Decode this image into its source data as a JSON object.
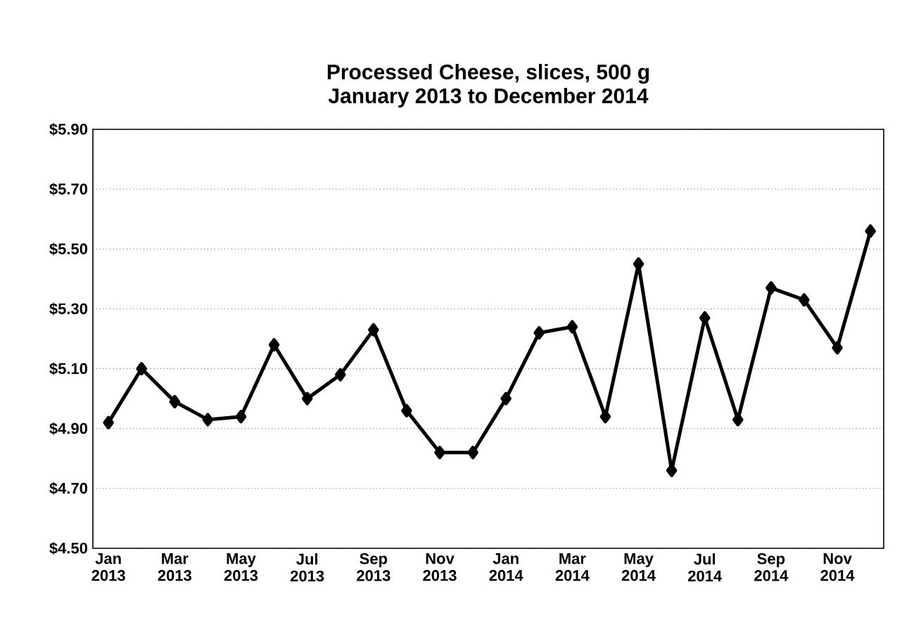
{
  "chart_data": {
    "type": "line",
    "title": "Processed Cheese, slices, 500 g",
    "subtitle": "January 2013 to December 2014",
    "categories": [
      "Jan 2013",
      null,
      "Mar 2013",
      null,
      "May 2013",
      null,
      "Jul 2013",
      null,
      "Sep 2013",
      null,
      "Nov 2013",
      null,
      "Jan 2014",
      null,
      "Mar 2014",
      null,
      "May 2014",
      null,
      "Jul 2014",
      null,
      "Sep 2014",
      null,
      "Nov 2014",
      null
    ],
    "values": [
      4.92,
      5.1,
      4.99,
      4.93,
      4.94,
      5.18,
      5.0,
      5.08,
      5.23,
      4.96,
      4.82,
      4.82,
      5.0,
      5.22,
      5.24,
      4.94,
      5.45,
      4.76,
      5.27,
      4.93,
      5.37,
      5.33,
      5.17,
      5.56
    ],
    "color": "#000000",
    "ylim": [
      4.5,
      5.9
    ],
    "yticks": [
      {
        "value": 4.5,
        "label": "$4.50"
      },
      {
        "value": 4.7,
        "label": "$4.70"
      },
      {
        "value": 4.9,
        "label": "$4.90"
      },
      {
        "value": 5.1,
        "label": "$5.10"
      },
      {
        "value": 5.3,
        "label": "$5.30"
      },
      {
        "value": 5.5,
        "label": "$5.50"
      },
      {
        "value": 5.7,
        "label": "$5.70"
      },
      {
        "value": 5.9,
        "label": "$5.90"
      }
    ],
    "grid": "y",
    "marker": "diamond",
    "line_style": "solid"
  }
}
